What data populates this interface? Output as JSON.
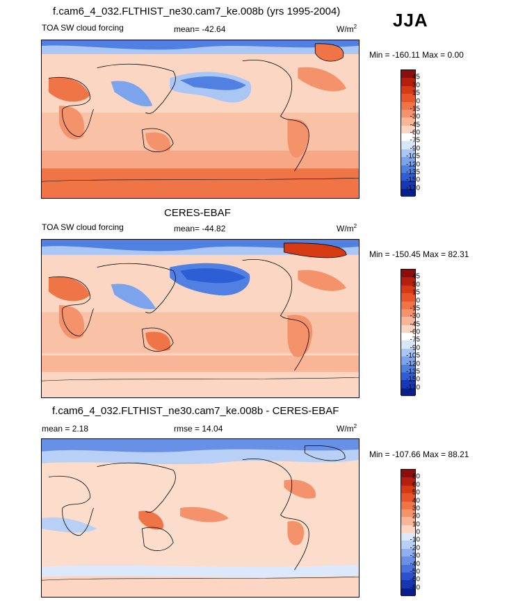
{
  "season": "JJA",
  "panels": [
    {
      "title": "f.cam6_4_032.FLTHIST_ne30.cam7_ke.008b (yrs 1995-2004)",
      "left_label": "TOA SW cloud forcing",
      "center_label": "mean= -42.64",
      "units": "W/m",
      "units_exp": "2",
      "min_max": "Min = -160.11 Max =   0.00",
      "colorbar_ticks": [
        "45",
        "30",
        "15",
        "0",
        "-15",
        "-30",
        "-45",
        "-60",
        "-75",
        "-90",
        "-105",
        "-120",
        "-135",
        "-150",
        "-170"
      ],
      "colorbar_colors": [
        "#8b0e0e",
        "#b5200e",
        "#d63a12",
        "#e8542a",
        "#ef7547",
        "#f4936b",
        "#f9b596",
        "#fcd6c2",
        "#ffffff",
        "#d8e6fb",
        "#aac6f5",
        "#7ba4ec",
        "#4f80e2",
        "#2d5ed6",
        "#1538b8",
        "#0a1e8a"
      ]
    },
    {
      "title": "CERES-EBAF",
      "left_label": "TOA SW cloud forcing",
      "center_label": "mean= -44.82",
      "units": "W/m",
      "units_exp": "2",
      "min_max": "Min = -150.45 Max =  82.31",
      "colorbar_ticks": [
        "45",
        "30",
        "15",
        "0",
        "-15",
        "-30",
        "-45",
        "-60",
        "-75",
        "-90",
        "-105",
        "-120",
        "-135",
        "-150",
        "-170"
      ],
      "colorbar_colors": [
        "#8b0e0e",
        "#b5200e",
        "#d63a12",
        "#e8542a",
        "#ef7547",
        "#f4936b",
        "#f9b596",
        "#fcd6c2",
        "#ffffff",
        "#d8e6fb",
        "#aac6f5",
        "#7ba4ec",
        "#4f80e2",
        "#2d5ed6",
        "#1538b8",
        "#0a1e8a"
      ]
    },
    {
      "title": "f.cam6_4_032.FLTHIST_ne30.cam7_ke.008b - CERES-EBAF",
      "left_label": "mean =   2.18",
      "center_label": "rmse =  14.04",
      "units": "W/m",
      "units_exp": "2",
      "min_max": "Min = -107.66 Max =  88.21",
      "colorbar_ticks": [
        "80",
        "60",
        "50",
        "40",
        "30",
        "20",
        "10",
        "0",
        "-10",
        "-20",
        "-30",
        "-40",
        "-50",
        "-60",
        "-80"
      ],
      "colorbar_colors": [
        "#8b0e0e",
        "#b5200e",
        "#d63a12",
        "#e8542a",
        "#ef7547",
        "#f4936b",
        "#f9b596",
        "#fcd6c2",
        "#dce8fb",
        "#b8cff6",
        "#8fb0ef",
        "#6890e6",
        "#4a72dc",
        "#2b52cc",
        "#1636b0",
        "#0a1e8a"
      ]
    }
  ]
}
